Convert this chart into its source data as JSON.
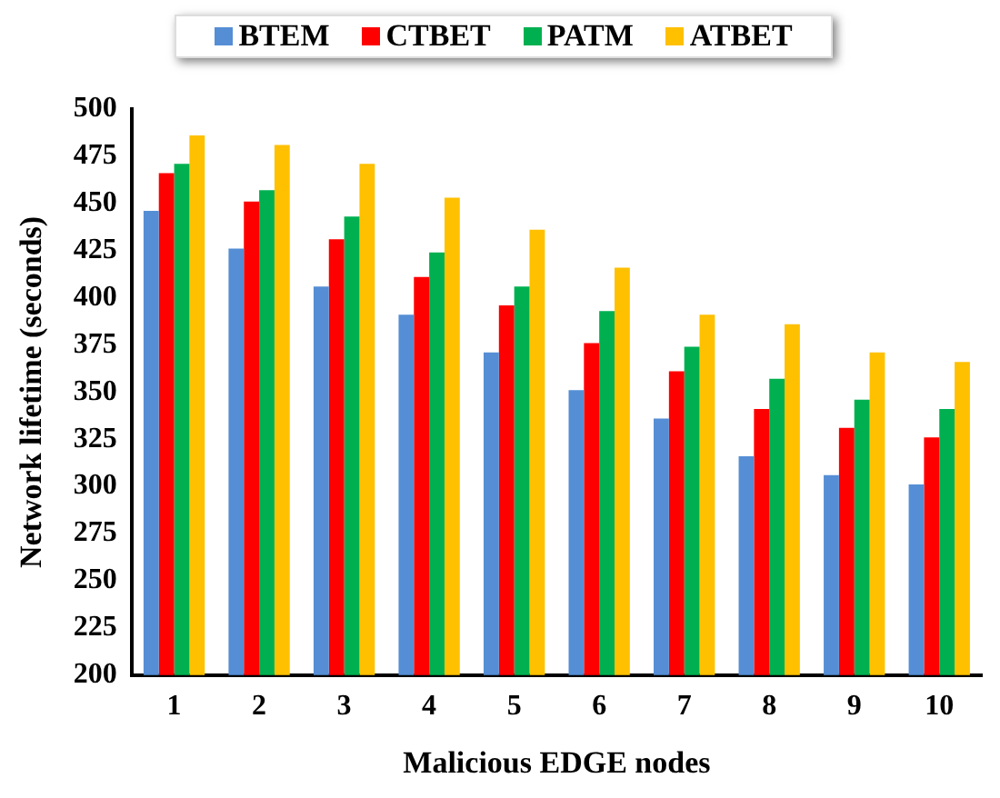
{
  "chart_data": {
    "type": "bar",
    "xlabel": "Malicious EDGE nodes",
    "ylabel": "Network lifetime (seconds)",
    "categories": [
      "1",
      "2",
      "3",
      "4",
      "5",
      "6",
      "7",
      "8",
      "9",
      "10"
    ],
    "series": [
      {
        "name": "BTEM",
        "color": "#558ed5",
        "values": [
          446,
          426,
          406,
          391,
          371,
          351,
          336,
          316,
          306,
          301
        ]
      },
      {
        "name": "CTBET",
        "color": "#ff0000",
        "values": [
          466,
          451,
          431,
          411,
          396,
          376,
          361,
          341,
          331,
          326
        ]
      },
      {
        "name": "PATM",
        "color": "#00b050",
        "values": [
          471,
          457,
          443,
          424,
          406,
          393,
          374,
          357,
          346,
          341
        ]
      },
      {
        "name": "ATBET",
        "color": "#ffc000",
        "values": [
          486,
          481,
          471,
          453,
          436,
          416,
          391,
          386,
          371,
          366
        ]
      }
    ],
    "ylim": [
      200,
      500
    ],
    "yticks": [
      200,
      225,
      250,
      275,
      300,
      325,
      350,
      375,
      400,
      425,
      450,
      475,
      500
    ],
    "grid": false,
    "legend": "top"
  }
}
